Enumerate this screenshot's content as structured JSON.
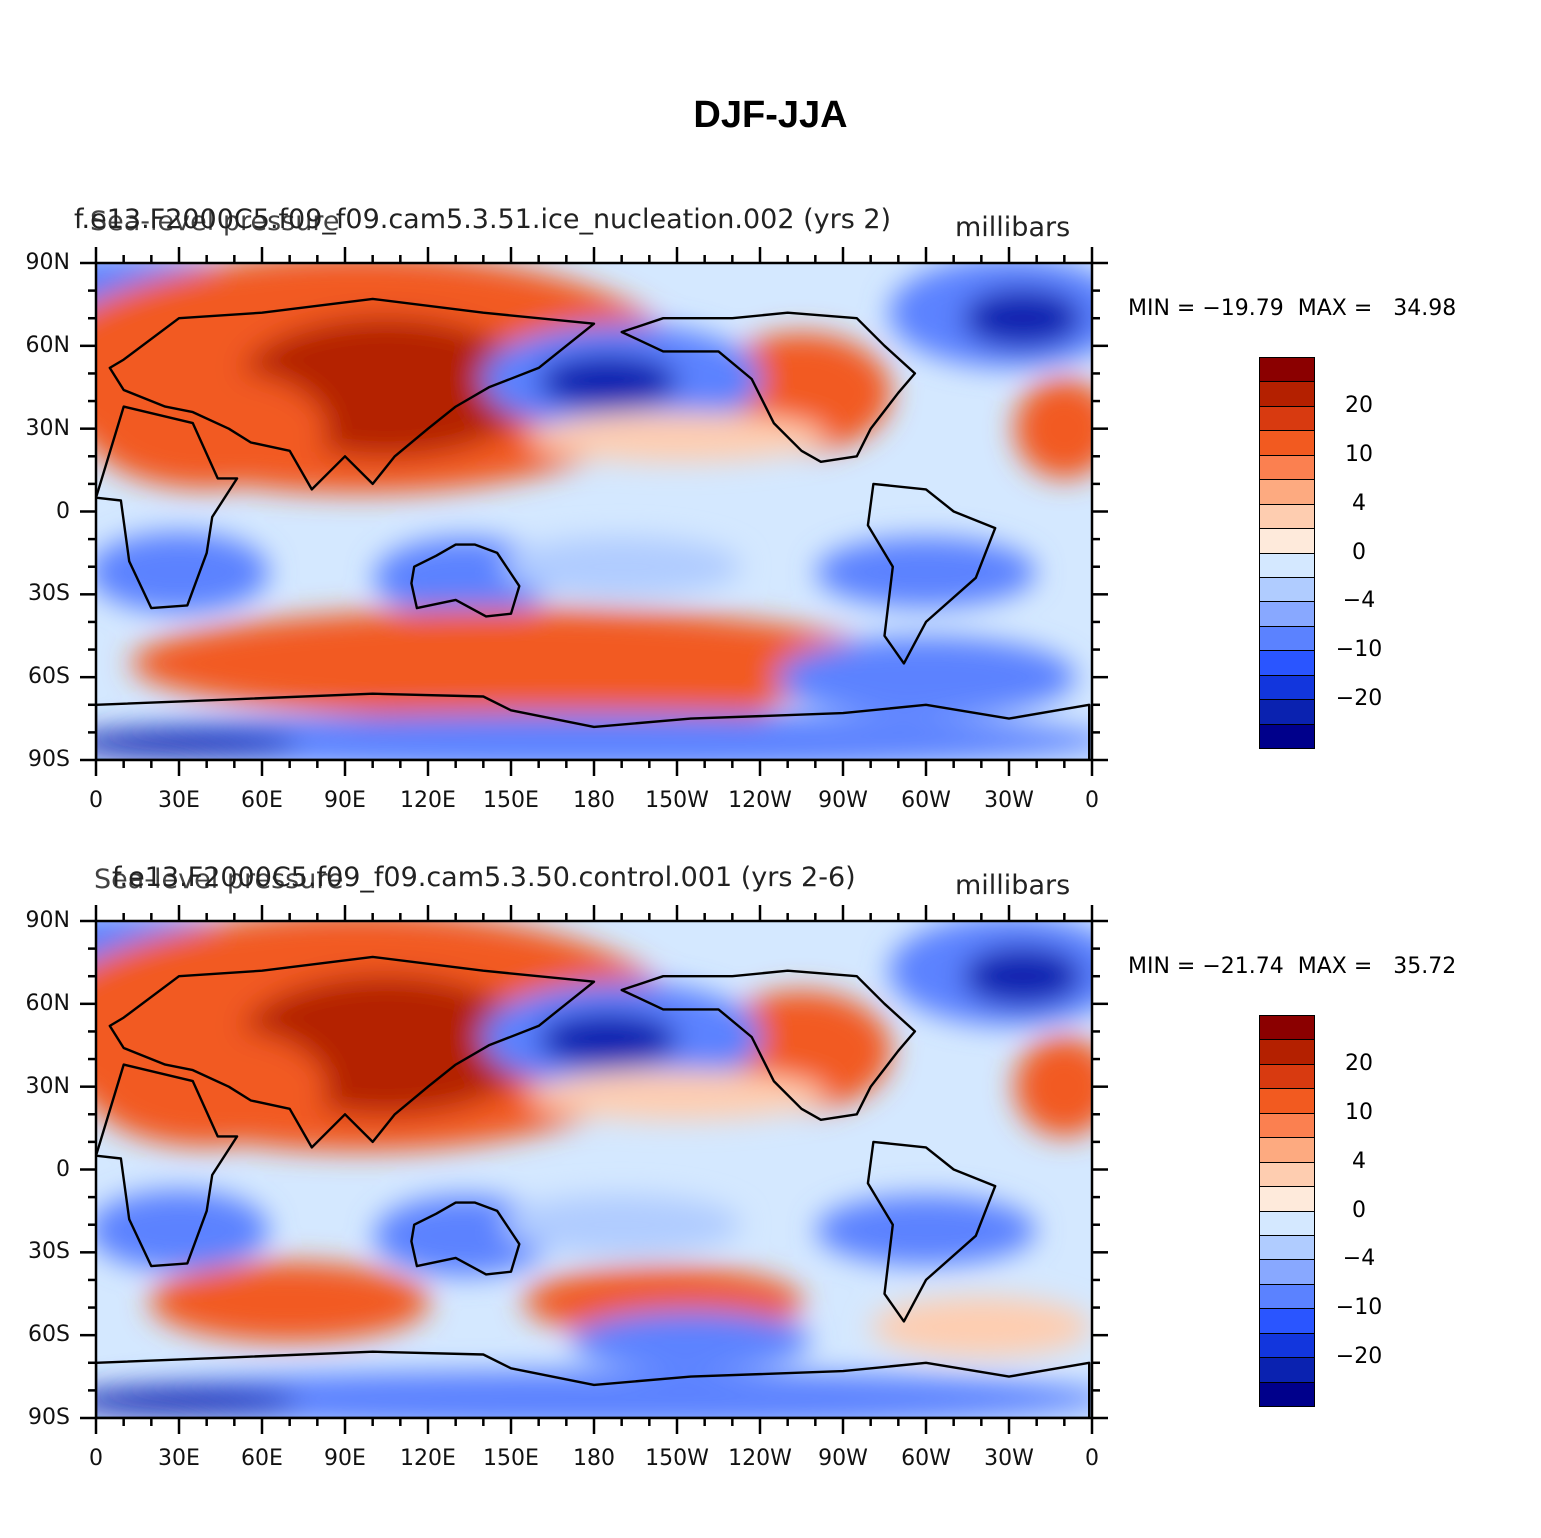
{
  "title": "DJF-JJA",
  "panels": [
    {
      "id": "top",
      "left_title": "f.e13.F2000C5.f09_f09.cam5.3.51.ice_nucleation.002 (yrs 2)",
      "variable_title": "Sea-level pressure",
      "units": "millibars",
      "min_max_text": "MIN = −19.79  MAX =   34.98",
      "min": -19.79,
      "max": 34.98
    },
    {
      "id": "bottom",
      "left_title": "f.e13.F2000C5.f09_f09.cam5.3.50.control.001 (yrs 2-6)",
      "variable_title": "Sea-level pressure",
      "units": "millibars",
      "min_max_text": "MIN = −21.74  MAX =   35.72",
      "min": -21.74,
      "max": 35.72
    }
  ],
  "lat_labels": [
    "90N",
    "60N",
    "30N",
    "0",
    "30S",
    "60S",
    "90S"
  ],
  "lon_labels": [
    "0",
    "30E",
    "60E",
    "90E",
    "120E",
    "150E",
    "180",
    "150W",
    "120W",
    "90W",
    "60W",
    "30W",
    "0"
  ],
  "colorbar": {
    "labels": [
      "20",
      "10",
      "4",
      "0",
      "−4",
      "−10",
      "−20"
    ],
    "colors": [
      "#8b0000",
      "#b42000",
      "#d83a10",
      "#f25a20",
      "#fb8050",
      "#fdaa80",
      "#fecdb0",
      "#feeadb",
      "#d4e8ff",
      "#b0ccff",
      "#88a8ff",
      "#5b82ff",
      "#2a55ff",
      "#1236dd",
      "#0a22b0",
      "#00008b"
    ]
  },
  "legend_colors": {
    "strong_positive": "#b42000",
    "positive": "#f25a20",
    "weak_positive": "#fecdb0",
    "neutral_negative": "#d4e8ff",
    "negative": "#5b82ff",
    "strong_negative": "#0a22b0"
  }
}
